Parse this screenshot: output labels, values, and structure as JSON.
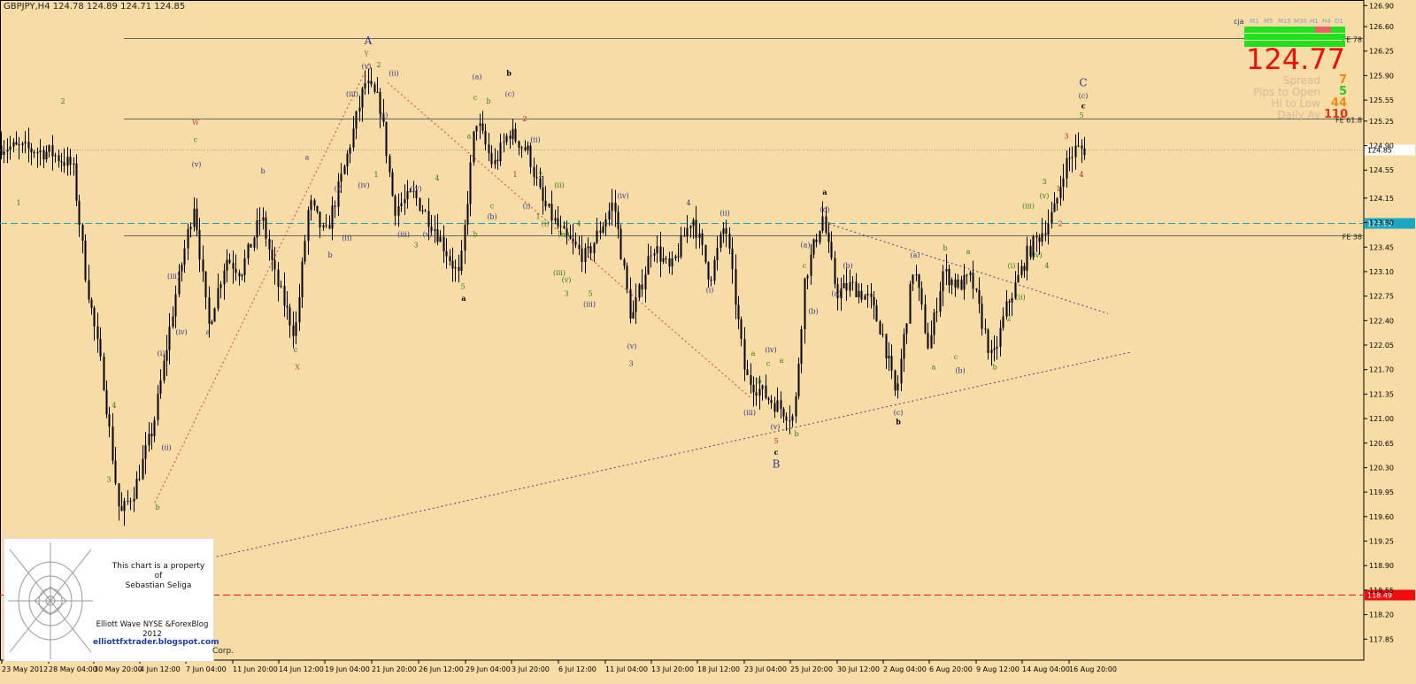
{
  "header": {
    "title": "GBPJPY,H4  124.78 124.89 124.71 124.85"
  },
  "colors": {
    "background": "#f7dca6",
    "candle": "#000000",
    "wave_navy": "#2e3590",
    "wave_green": "#2f7d12",
    "wave_red": "#bb2222",
    "wave_brown": "#b35a2a",
    "price_red": "#f00d0d",
    "line_cyan": "#19a7c3"
  },
  "watermark": {
    "line1": "This chart is a property of",
    "line2": "Sebastian Seliga",
    "line3": "Elliott Wave NYSE &ForexBlog",
    "line4": "2012",
    "line5": "elliottfxtrader.blogspot.com",
    "footer": "Corp."
  },
  "panel": {
    "symbol": "cja",
    "timeframes": [
      "M1",
      "M5",
      "M15",
      "M30",
      "H1",
      "H4",
      "D1"
    ],
    "price": "124.77",
    "stats": [
      {
        "label": "Spread",
        "value": "7",
        "color": "#f08a10"
      },
      {
        "label": "Pips to Open",
        "value": "5",
        "color": "#22cc22"
      },
      {
        "label": "Hi to Low",
        "value": "44",
        "color": "#f08a10"
      },
      {
        "label": "Daily Av",
        "value": "110",
        "color": "#e03515"
      }
    ]
  },
  "chart_data": {
    "type": "candlestick",
    "symbol": "GBPJPY",
    "timeframe": "H4",
    "ylim": [
      117.55,
      126.98
    ],
    "y_ticks": [
      126.9,
      126.6,
      126.25,
      125.9,
      125.55,
      125.25,
      124.9,
      124.55,
      124.15,
      123.8,
      123.45,
      123.1,
      122.75,
      122.4,
      122.05,
      121.7,
      121.35,
      121.0,
      120.65,
      120.3,
      119.95,
      119.6,
      119.25,
      118.9,
      118.55,
      118.2,
      117.85
    ],
    "x_labels": [
      "23 May 2012",
      "28 May 04:00",
      "30 May 20:00",
      "4 Jun 12:00",
      "7 Jun 04:00",
      "11 Jun 20:00",
      "14 Jun 12:00",
      "19 Jun 04:00",
      "21 Jun 20:00",
      "26 Jun 12:00",
      "29 Jun 04:00",
      "3 Jul 20:00",
      "6 Jul 12:00",
      "11 Jul 04:00",
      "13 Jul 20:00",
      "18 Jul 12:00",
      "23 Jul 04:00",
      "25 Jul 20:00",
      "30 Jul 12:00",
      "2 Aug 04:00",
      "6 Aug 20:00",
      "9 Aug 12:00",
      "14 Aug 04:00",
      "16 Aug 20:00"
    ],
    "path": [
      [
        0,
        124.9
      ],
      [
        60,
        124.8
      ],
      [
        85,
        124.6
      ],
      [
        100,
        123.0
      ],
      [
        120,
        121.5
      ],
      [
        138,
        119.6
      ],
      [
        155,
        120.0
      ],
      [
        176,
        120.9
      ],
      [
        200,
        122.7
      ],
      [
        222,
        124.1
      ],
      [
        238,
        122.3
      ],
      [
        258,
        123.3
      ],
      [
        275,
        123.1
      ],
      [
        298,
        123.9
      ],
      [
        314,
        123.0
      ],
      [
        336,
        122.2
      ],
      [
        352,
        124.1
      ],
      [
        370,
        123.6
      ],
      [
        392,
        124.6
      ],
      [
        415,
        125.8
      ],
      [
        432,
        125.5
      ],
      [
        448,
        124.0
      ],
      [
        470,
        124.2
      ],
      [
        495,
        123.7
      ],
      [
        522,
        123.0
      ],
      [
        540,
        125.3
      ],
      [
        560,
        124.6
      ],
      [
        578,
        125.1
      ],
      [
        600,
        124.8
      ],
      [
        615,
        124.1
      ],
      [
        640,
        123.6
      ],
      [
        665,
        123.3
      ],
      [
        696,
        124.1
      ],
      [
        716,
        122.4
      ],
      [
        740,
        123.5
      ],
      [
        760,
        123.1
      ],
      [
        785,
        123.9
      ],
      [
        805,
        123.0
      ],
      [
        822,
        123.8
      ],
      [
        845,
        121.6
      ],
      [
        870,
        121.3
      ],
      [
        900,
        121.0
      ],
      [
        912,
        123.0
      ],
      [
        932,
        123.9
      ],
      [
        948,
        122.8
      ],
      [
        965,
        122.9
      ],
      [
        985,
        122.7
      ],
      [
        1000,
        122.2
      ],
      [
        1015,
        121.3
      ],
      [
        1035,
        123.2
      ],
      [
        1052,
        122.0
      ],
      [
        1068,
        123.1
      ],
      [
        1085,
        122.9
      ],
      [
        1100,
        123.0
      ],
      [
        1124,
        121.8
      ],
      [
        1140,
        122.6
      ],
      [
        1150,
        122.9
      ],
      [
        1165,
        123.4
      ],
      [
        1182,
        123.7
      ],
      [
        1195,
        124.0
      ],
      [
        1205,
        124.6
      ],
      [
        1218,
        124.85
      ],
      [
        1228,
        124.85
      ]
    ],
    "horizontal_lines": [
      {
        "price": 126.44,
        "label": "FE 78",
        "style": "solid",
        "color": "#666666"
      },
      {
        "price": 125.29,
        "label": "FE 61.8",
        "style": "solid",
        "color": "#666666"
      },
      {
        "price": 124.85,
        "label": "124.85",
        "style": "dotted",
        "color": "#999999"
      },
      {
        "price": 123.8,
        "label": "123.80",
        "style": "dashed",
        "color": "#19a7c3"
      },
      {
        "price": 123.62,
        "label": "FE 38",
        "style": "solid",
        "color": "#666666"
      },
      {
        "price": 118.49,
        "label": "118.49",
        "style": "dashed",
        "color": "#f00d0d"
      }
    ],
    "wave_labels": [
      {
        "t": "1",
        "x": 21,
        "p": 124.05,
        "c": "green"
      },
      {
        "t": "2",
        "x": 71,
        "p": 125.5,
        "c": "green"
      },
      {
        "t": "4",
        "x": 129,
        "p": 121.15,
        "c": "green"
      },
      {
        "t": "3",
        "x": 123,
        "p": 120.1,
        "c": "green"
      },
      {
        "t": "b",
        "x": 178,
        "p": 119.7,
        "c": "green"
      },
      {
        "t": "(ii)",
        "x": 188,
        "p": 120.55,
        "c": "navy"
      },
      {
        "t": "(i)",
        "x": 182,
        "p": 121.9,
        "c": "navy"
      },
      {
        "t": "(iv)",
        "x": 205,
        "p": 122.2,
        "c": "navy"
      },
      {
        "t": "(iii)",
        "x": 196,
        "p": 123.0,
        "c": "navy"
      },
      {
        "t": "(v)",
        "x": 222,
        "p": 124.6,
        "c": "navy"
      },
      {
        "t": "c",
        "x": 221,
        "p": 124.95,
        "c": "green"
      },
      {
        "t": "W",
        "x": 221,
        "p": 125.2,
        "c": "brown"
      },
      {
        "t": "a",
        "x": 235,
        "p": 122.2,
        "c": "navy"
      },
      {
        "t": "b",
        "x": 297,
        "p": 124.5,
        "c": "navy"
      },
      {
        "t": "a",
        "x": 347,
        "p": 124.7,
        "c": "navy"
      },
      {
        "t": "c",
        "x": 334,
        "p": 121.95,
        "c": "navy"
      },
      {
        "t": "X",
        "x": 336,
        "p": 121.7,
        "c": "brown"
      },
      {
        "t": "(i)",
        "x": 382,
        "p": 124.25,
        "c": "navy"
      },
      {
        "t": "b",
        "x": 373,
        "p": 123.3,
        "c": "navy"
      },
      {
        "t": "(ii)",
        "x": 392,
        "p": 123.55,
        "c": "navy"
      },
      {
        "t": "(iii)",
        "x": 398,
        "p": 125.6,
        "c": "navy"
      },
      {
        "t": "(iv)",
        "x": 411,
        "p": 124.3,
        "c": "navy"
      },
      {
        "t": "(v)",
        "x": 414,
        "p": 126.0,
        "c": "navy"
      },
      {
        "t": "Y",
        "x": 414,
        "p": 126.18,
        "c": "brown"
      },
      {
        "t": "A",
        "x": 416,
        "p": 126.35,
        "c": "navy_big"
      },
      {
        "t": "2",
        "x": 428,
        "p": 126.02,
        "c": "green"
      },
      {
        "t": "1",
        "x": 425,
        "p": 124.45,
        "c": "green"
      },
      {
        "t": "(i)",
        "x": 434,
        "p": 125.3,
        "c": "navy"
      },
      {
        "t": "(ii)",
        "x": 445,
        "p": 125.9,
        "c": "navy"
      },
      {
        "t": "(iv)",
        "x": 470,
        "p": 124.25,
        "c": "navy"
      },
      {
        "t": "4",
        "x": 494,
        "p": 124.4,
        "c": "green"
      },
      {
        "t": "(iii)",
        "x": 456,
        "p": 123.6,
        "c": "navy"
      },
      {
        "t": "(v)",
        "x": 483,
        "p": 123.6,
        "c": "navy"
      },
      {
        "t": "3",
        "x": 470,
        "p": 123.45,
        "c": "green"
      },
      {
        "t": "5",
        "x": 523,
        "p": 122.85,
        "c": "green"
      },
      {
        "t": "a",
        "x": 524,
        "p": 122.68,
        "c": "black"
      },
      {
        "t": "(a)",
        "x": 539,
        "p": 125.85,
        "c": "navy"
      },
      {
        "t": "c",
        "x": 537,
        "p": 125.55,
        "c": "green"
      },
      {
        "t": "b",
        "x": 552,
        "p": 125.5,
        "c": "green"
      },
      {
        "t": "a",
        "x": 530,
        "p": 125.0,
        "c": "green"
      },
      {
        "t": "b",
        "x": 537,
        "p": 123.6,
        "c": "green"
      },
      {
        "t": "c",
        "x": 556,
        "p": 124.0,
        "c": "green"
      },
      {
        "t": "(b)",
        "x": 556,
        "p": 123.85,
        "c": "navy"
      },
      {
        "t": "b",
        "x": 575,
        "p": 125.9,
        "c": "black"
      },
      {
        "t": "(c)",
        "x": 576,
        "p": 125.6,
        "c": "navy"
      },
      {
        "t": "2",
        "x": 593,
        "p": 125.25,
        "c": "red"
      },
      {
        "t": "1",
        "x": 582,
        "p": 124.45,
        "c": "red"
      },
      {
        "t": "(ii)",
        "x": 605,
        "p": 124.95,
        "c": "navy"
      },
      {
        "t": "2",
        "x": 611,
        "p": 124.45,
        "c": "green"
      },
      {
        "t": "(i)",
        "x": 595,
        "p": 124.0,
        "c": "navy"
      },
      {
        "t": "1",
        "x": 608,
        "p": 123.85,
        "c": "green"
      },
      {
        "t": "(ii)",
        "x": 632,
        "p": 124.3,
        "c": "green"
      },
      {
        "t": "(i)",
        "x": 616,
        "p": 123.75,
        "c": "green"
      },
      {
        "t": "(iv)",
        "x": 637,
        "p": 123.6,
        "c": "green"
      },
      {
        "t": "4",
        "x": 654,
        "p": 123.75,
        "c": "green"
      },
      {
        "t": "(iii)",
        "x": 632,
        "p": 123.05,
        "c": "green"
      },
      {
        "t": "(v)",
        "x": 640,
        "p": 122.95,
        "c": "green"
      },
      {
        "t": "3",
        "x": 640,
        "p": 122.75,
        "c": "green"
      },
      {
        "t": "5",
        "x": 667,
        "p": 122.75,
        "c": "green"
      },
      {
        "t": "(iii)",
        "x": 666,
        "p": 122.6,
        "c": "navy"
      },
      {
        "t": "(iv)",
        "x": 704,
        "p": 124.15,
        "c": "navy"
      },
      {
        "t": "(v)",
        "x": 714,
        "p": 122.0,
        "c": "navy"
      },
      {
        "t": "3",
        "x": 713,
        "p": 121.75,
        "c": "navy"
      },
      {
        "t": "4",
        "x": 778,
        "p": 124.05,
        "c": "navy"
      },
      {
        "t": "(ii)",
        "x": 819,
        "p": 123.9,
        "c": "navy"
      },
      {
        "t": "(i)",
        "x": 802,
        "p": 122.8,
        "c": "navy"
      },
      {
        "t": "a",
        "x": 851,
        "p": 121.9,
        "c": "green"
      },
      {
        "t": "(iv)",
        "x": 871,
        "p": 121.95,
        "c": "navy"
      },
      {
        "t": "c",
        "x": 868,
        "p": 121.75,
        "c": "green"
      },
      {
        "t": "b",
        "x": 858,
        "p": 121.5,
        "c": "green"
      },
      {
        "t": "a",
        "x": 883,
        "p": 121.8,
        "c": "green"
      },
      {
        "t": "(iii)",
        "x": 847,
        "p": 121.05,
        "c": "navy"
      },
      {
        "t": "(v)",
        "x": 876,
        "p": 120.85,
        "c": "navy"
      },
      {
        "t": "b",
        "x": 900,
        "p": 120.75,
        "c": "green"
      },
      {
        "t": "5",
        "x": 877,
        "p": 120.65,
        "c": "red"
      },
      {
        "t": "c",
        "x": 877,
        "p": 120.48,
        "c": "black"
      },
      {
        "t": "B",
        "x": 877,
        "p": 120.3,
        "c": "navy_big"
      },
      {
        "t": "c",
        "x": 909,
        "p": 123.15,
        "c": "green"
      },
      {
        "t": "(a)",
        "x": 910,
        "p": 123.45,
        "c": "navy"
      },
      {
        "t": "(b)",
        "x": 919,
        "p": 122.5,
        "c": "navy"
      },
      {
        "t": "a",
        "x": 932,
        "p": 124.2,
        "c": "black"
      },
      {
        "t": "(c)",
        "x": 932,
        "p": 123.95,
        "c": "navy"
      },
      {
        "t": "(b)",
        "x": 958,
        "p": 123.15,
        "c": "navy"
      },
      {
        "t": "(a)",
        "x": 945,
        "p": 122.75,
        "c": "navy"
      },
      {
        "t": "(c)",
        "x": 1015,
        "p": 121.05,
        "c": "navy"
      },
      {
        "t": "b",
        "x": 1015,
        "p": 120.92,
        "c": "black"
      },
      {
        "t": "(a)",
        "x": 1034,
        "p": 123.3,
        "c": "navy"
      },
      {
        "t": "a",
        "x": 1055,
        "p": 121.7,
        "c": "green"
      },
      {
        "t": "b",
        "x": 1068,
        "p": 123.4,
        "c": "green"
      },
      {
        "t": "c",
        "x": 1080,
        "p": 121.85,
        "c": "green"
      },
      {
        "t": "(b)",
        "x": 1085,
        "p": 121.65,
        "c": "navy"
      },
      {
        "t": "a",
        "x": 1094,
        "p": 123.35,
        "c": "green"
      },
      {
        "t": "b",
        "x": 1124,
        "p": 121.7,
        "c": "green"
      },
      {
        "t": "2",
        "x": 1140,
        "p": 122.4,
        "c": "green"
      },
      {
        "t": "(i)",
        "x": 1143,
        "p": 123.15,
        "c": "green"
      },
      {
        "t": "(ii)",
        "x": 1153,
        "p": 122.7,
        "c": "green"
      },
      {
        "t": "(iii)",
        "x": 1162,
        "p": 124.0,
        "c": "green"
      },
      {
        "t": "(iv)",
        "x": 1171,
        "p": 123.3,
        "c": "green"
      },
      {
        "t": "(v)",
        "x": 1180,
        "p": 124.15,
        "c": "green"
      },
      {
        "t": "3",
        "x": 1180,
        "p": 124.35,
        "c": "green"
      },
      {
        "t": "4",
        "x": 1183,
        "p": 123.15,
        "c": "green"
      },
      {
        "t": "2",
        "x": 1198,
        "p": 123.75,
        "c": "red"
      },
      {
        "t": "1",
        "x": 1196,
        "p": 124.25,
        "c": "red"
      },
      {
        "t": "3",
        "x": 1205,
        "p": 125.0,
        "c": "red"
      },
      {
        "t": "4",
        "x": 1222,
        "p": 124.45,
        "c": "red"
      },
      {
        "t": "5",
        "x": 1222,
        "p": 125.3,
        "c": "green"
      },
      {
        "t": "c",
        "x": 1224,
        "p": 125.43,
        "c": "black"
      },
      {
        "t": "(c)",
        "x": 1224,
        "p": 125.58,
        "c": "navy"
      },
      {
        "t": "C",
        "x": 1224,
        "p": 125.75,
        "c": "navy_big"
      }
    ],
    "trend_lines": [
      {
        "from": [
          175,
          119.8
        ],
        "to": [
          418,
          126.1
        ],
        "color": "#e04040",
        "style": "dotted"
      },
      {
        "from": [
          438,
          125.8
        ],
        "to": [
          848,
          121.3
        ],
        "color": "#e04040",
        "style": "dotted"
      },
      {
        "from": [
          235,
          119.0
        ],
        "to": [
          1278,
          121.95
        ],
        "color": "#6a3090",
        "style": "dotted"
      },
      {
        "from": [
          932,
          123.8
        ],
        "to": [
          1252,
          122.5
        ],
        "color": "#6a3090",
        "style": "dotted"
      }
    ]
  }
}
